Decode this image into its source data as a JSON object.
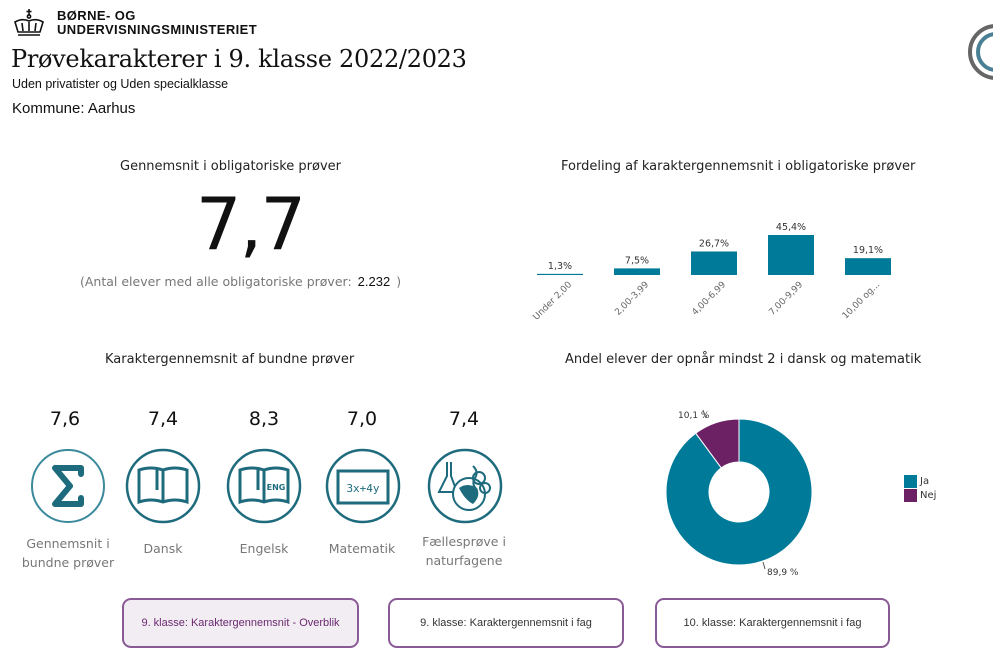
{
  "header": {
    "org_line1": "BØRNE- OG",
    "org_line2": "UNDERVISNINGSMINISTERIET",
    "title": "Prøvekarakterer i 9. klasse 2022/2023",
    "subtitle": "Uden privatister og Uden specialklasse",
    "kommune": "Kommune: Aarhus",
    "logo_icon": "crown-icon",
    "corner_icon": "circle-logo-icon"
  },
  "kpi": {
    "title": "Gennemsnit i obligatoriske prøver",
    "value": "7,7",
    "note_prefix": "(Antal elever med alle obligatoriske prøver:",
    "note_value": "2.232",
    "note_suffix": ")"
  },
  "bound_tests": {
    "title": "Karaktergennemsnit af bundne prøver",
    "items": [
      {
        "grade": "7,6",
        "label_line1": "Gennemsnit i",
        "label_line2": "bundne prøver",
        "icon": "sigma-icon"
      },
      {
        "grade": "7,4",
        "label_line1": "Dansk",
        "label_line2": "",
        "icon": "book-icon"
      },
      {
        "grade": "8,3",
        "label_line1": "Engelsk",
        "label_line2": "",
        "icon": "english-book-icon"
      },
      {
        "grade": "7,0",
        "label_line1": "Matematik",
        "label_line2": "",
        "icon": "math-board-icon"
      },
      {
        "grade": "7,4",
        "label_line1": "Fællesprøve i",
        "label_line2": "naturfagene",
        "icon": "science-globe-icon"
      }
    ]
  },
  "chart_data": [
    {
      "type": "bar",
      "title": "Fordeling af karaktergennemsnit i obligatoriske prøver",
      "categories": [
        "Under 2,00",
        "2,00-3,99",
        "4,00-6,99",
        "7,00-9,99",
        "10,00 og..."
      ],
      "values": [
        1.3,
        7.5,
        26.7,
        45.4,
        19.1
      ],
      "data_labels": [
        "1,3%",
        "7,5%",
        "26,7%",
        "45,4%",
        "19,1%"
      ],
      "xlabel": "",
      "ylabel": "",
      "ylim": [
        0,
        45.4
      ],
      "grid": false,
      "color": "#007a99"
    },
    {
      "type": "pie",
      "title": "Andel elever der opnår mindst 2 i dansk og matematik",
      "donut": true,
      "slices": [
        {
          "name": "Ja",
          "value": 89.9,
          "label": "89,9 %",
          "color": "#007a99"
        },
        {
          "name": "Nej",
          "value": 10.1,
          "label": "10,1 %",
          "color": "#6b2164"
        }
      ],
      "legend": [
        "Ja",
        "Nej"
      ],
      "legend_position": "right"
    }
  ],
  "nav": {
    "buttons": [
      {
        "label": "9. klasse: Karaktergennemsnit - Overblik",
        "active": true
      },
      {
        "label": "9. klasse: Karaktergennemsnit i fag",
        "active": false
      },
      {
        "label": "10. klasse: Karaktergennemsnit i fag",
        "active": false
      }
    ]
  },
  "colors": {
    "accent": "#007a99",
    "icon": "#1e6b7e",
    "secondary": "#6b2164",
    "nav_border": "#8a5a97",
    "nav_active_bg": "#f2ecf3"
  }
}
